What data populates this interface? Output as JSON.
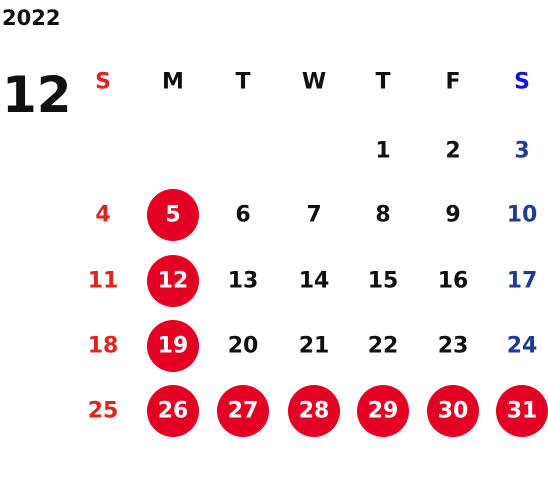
{
  "year": "2022",
  "month": "12",
  "weekdays": [
    "S",
    "M",
    "T",
    "W",
    "T",
    "F",
    "S"
  ],
  "weeks": [
    [
      null,
      null,
      null,
      null,
      1,
      2,
      3
    ],
    [
      4,
      5,
      6,
      7,
      8,
      9,
      10
    ],
    [
      11,
      12,
      13,
      14,
      15,
      16,
      17
    ],
    [
      18,
      19,
      20,
      21,
      22,
      23,
      24
    ],
    [
      25,
      26,
      27,
      28,
      29,
      30,
      31
    ]
  ],
  "highlighted_days": [
    5,
    12,
    19,
    26,
    27,
    28,
    29,
    30,
    31
  ],
  "colors": {
    "sunday": "#e0241c",
    "saturday": "#1e3c96",
    "saturday_header": "#1010e0",
    "weekday": "#111111",
    "highlight": "#e30022",
    "highlight_text": "#ffffff"
  }
}
